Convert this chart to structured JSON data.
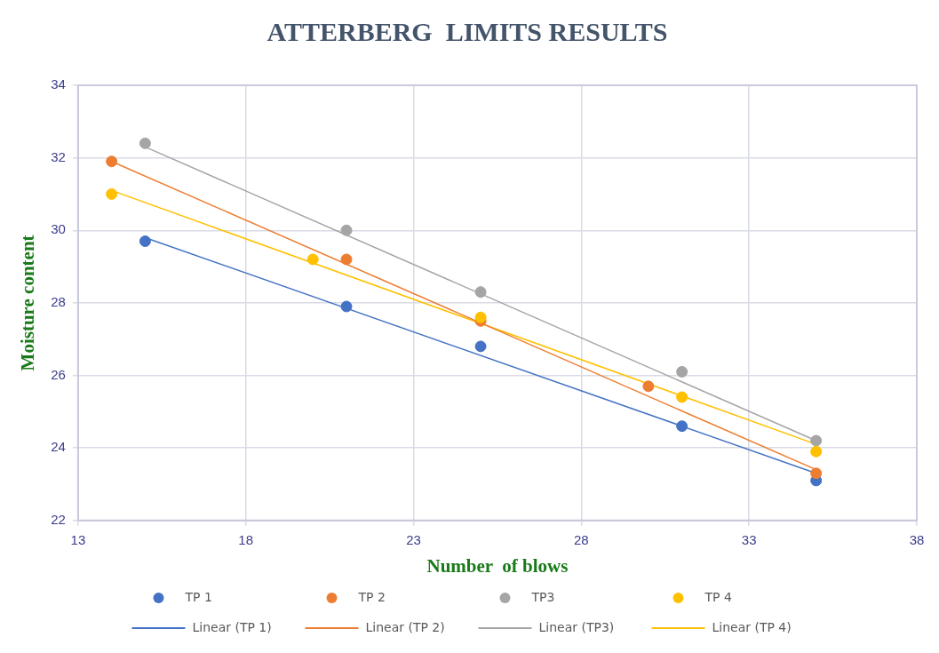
{
  "chart_data": {
    "type": "scatter",
    "title": "ATTERBERG  LIMITS RESULTS",
    "xlabel": "Number  of blows",
    "ylabel": "Moisture content",
    "xlim": [
      13,
      38
    ],
    "xticks": [
      13,
      18,
      23,
      28,
      33,
      38
    ],
    "ylim": [
      22,
      34
    ],
    "yticks": [
      22,
      24,
      26,
      28,
      30,
      32,
      34
    ],
    "grid": true,
    "legend": "bottom",
    "series": [
      {
        "name": "TP 1",
        "type": "scatter",
        "marker": "circle",
        "color": "#4472c4",
        "x": [
          15,
          21,
          25,
          31,
          35
        ],
        "values": [
          29.7,
          27.9,
          26.8,
          24.6,
          23.1
        ]
      },
      {
        "name": "TP 2",
        "type": "scatter",
        "marker": "circle",
        "color": "#ed7d31",
        "x": [
          14,
          21,
          25,
          30,
          35
        ],
        "values": [
          31.9,
          29.2,
          27.5,
          25.7,
          23.3
        ]
      },
      {
        "name": "TP3",
        "type": "scatter",
        "marker": "circle",
        "color": "#a5a5a5",
        "x": [
          15,
          21,
          25,
          31,
          35
        ],
        "values": [
          32.4,
          30.0,
          28.3,
          26.1,
          24.2
        ]
      },
      {
        "name": "TP 4",
        "type": "scatter",
        "marker": "circle",
        "color": "#ffc000",
        "x": [
          14,
          20,
          25,
          31,
          35
        ],
        "values": [
          31.0,
          29.2,
          27.6,
          25.4,
          23.9
        ]
      },
      {
        "name": "Linear (TP 1)",
        "type": "line",
        "marker": "none",
        "color": "#4472c4",
        "x": [
          15,
          35
        ],
        "values": [
          29.8,
          23.3
        ]
      },
      {
        "name": "Linear (TP 2)",
        "type": "line",
        "marker": "none",
        "color": "#ed7d31",
        "x": [
          14,
          35
        ],
        "values": [
          31.9,
          23.4
        ]
      },
      {
        "name": "Linear (TP3)",
        "type": "line",
        "marker": "none",
        "color": "#a5a5a5",
        "x": [
          15,
          35
        ],
        "values": [
          32.3,
          24.2
        ]
      },
      {
        "name": "Linear (TP 4)",
        "type": "line",
        "marker": "none",
        "color": "#ffc000",
        "x": [
          14,
          35
        ],
        "values": [
          31.1,
          24.1
        ]
      }
    ]
  }
}
